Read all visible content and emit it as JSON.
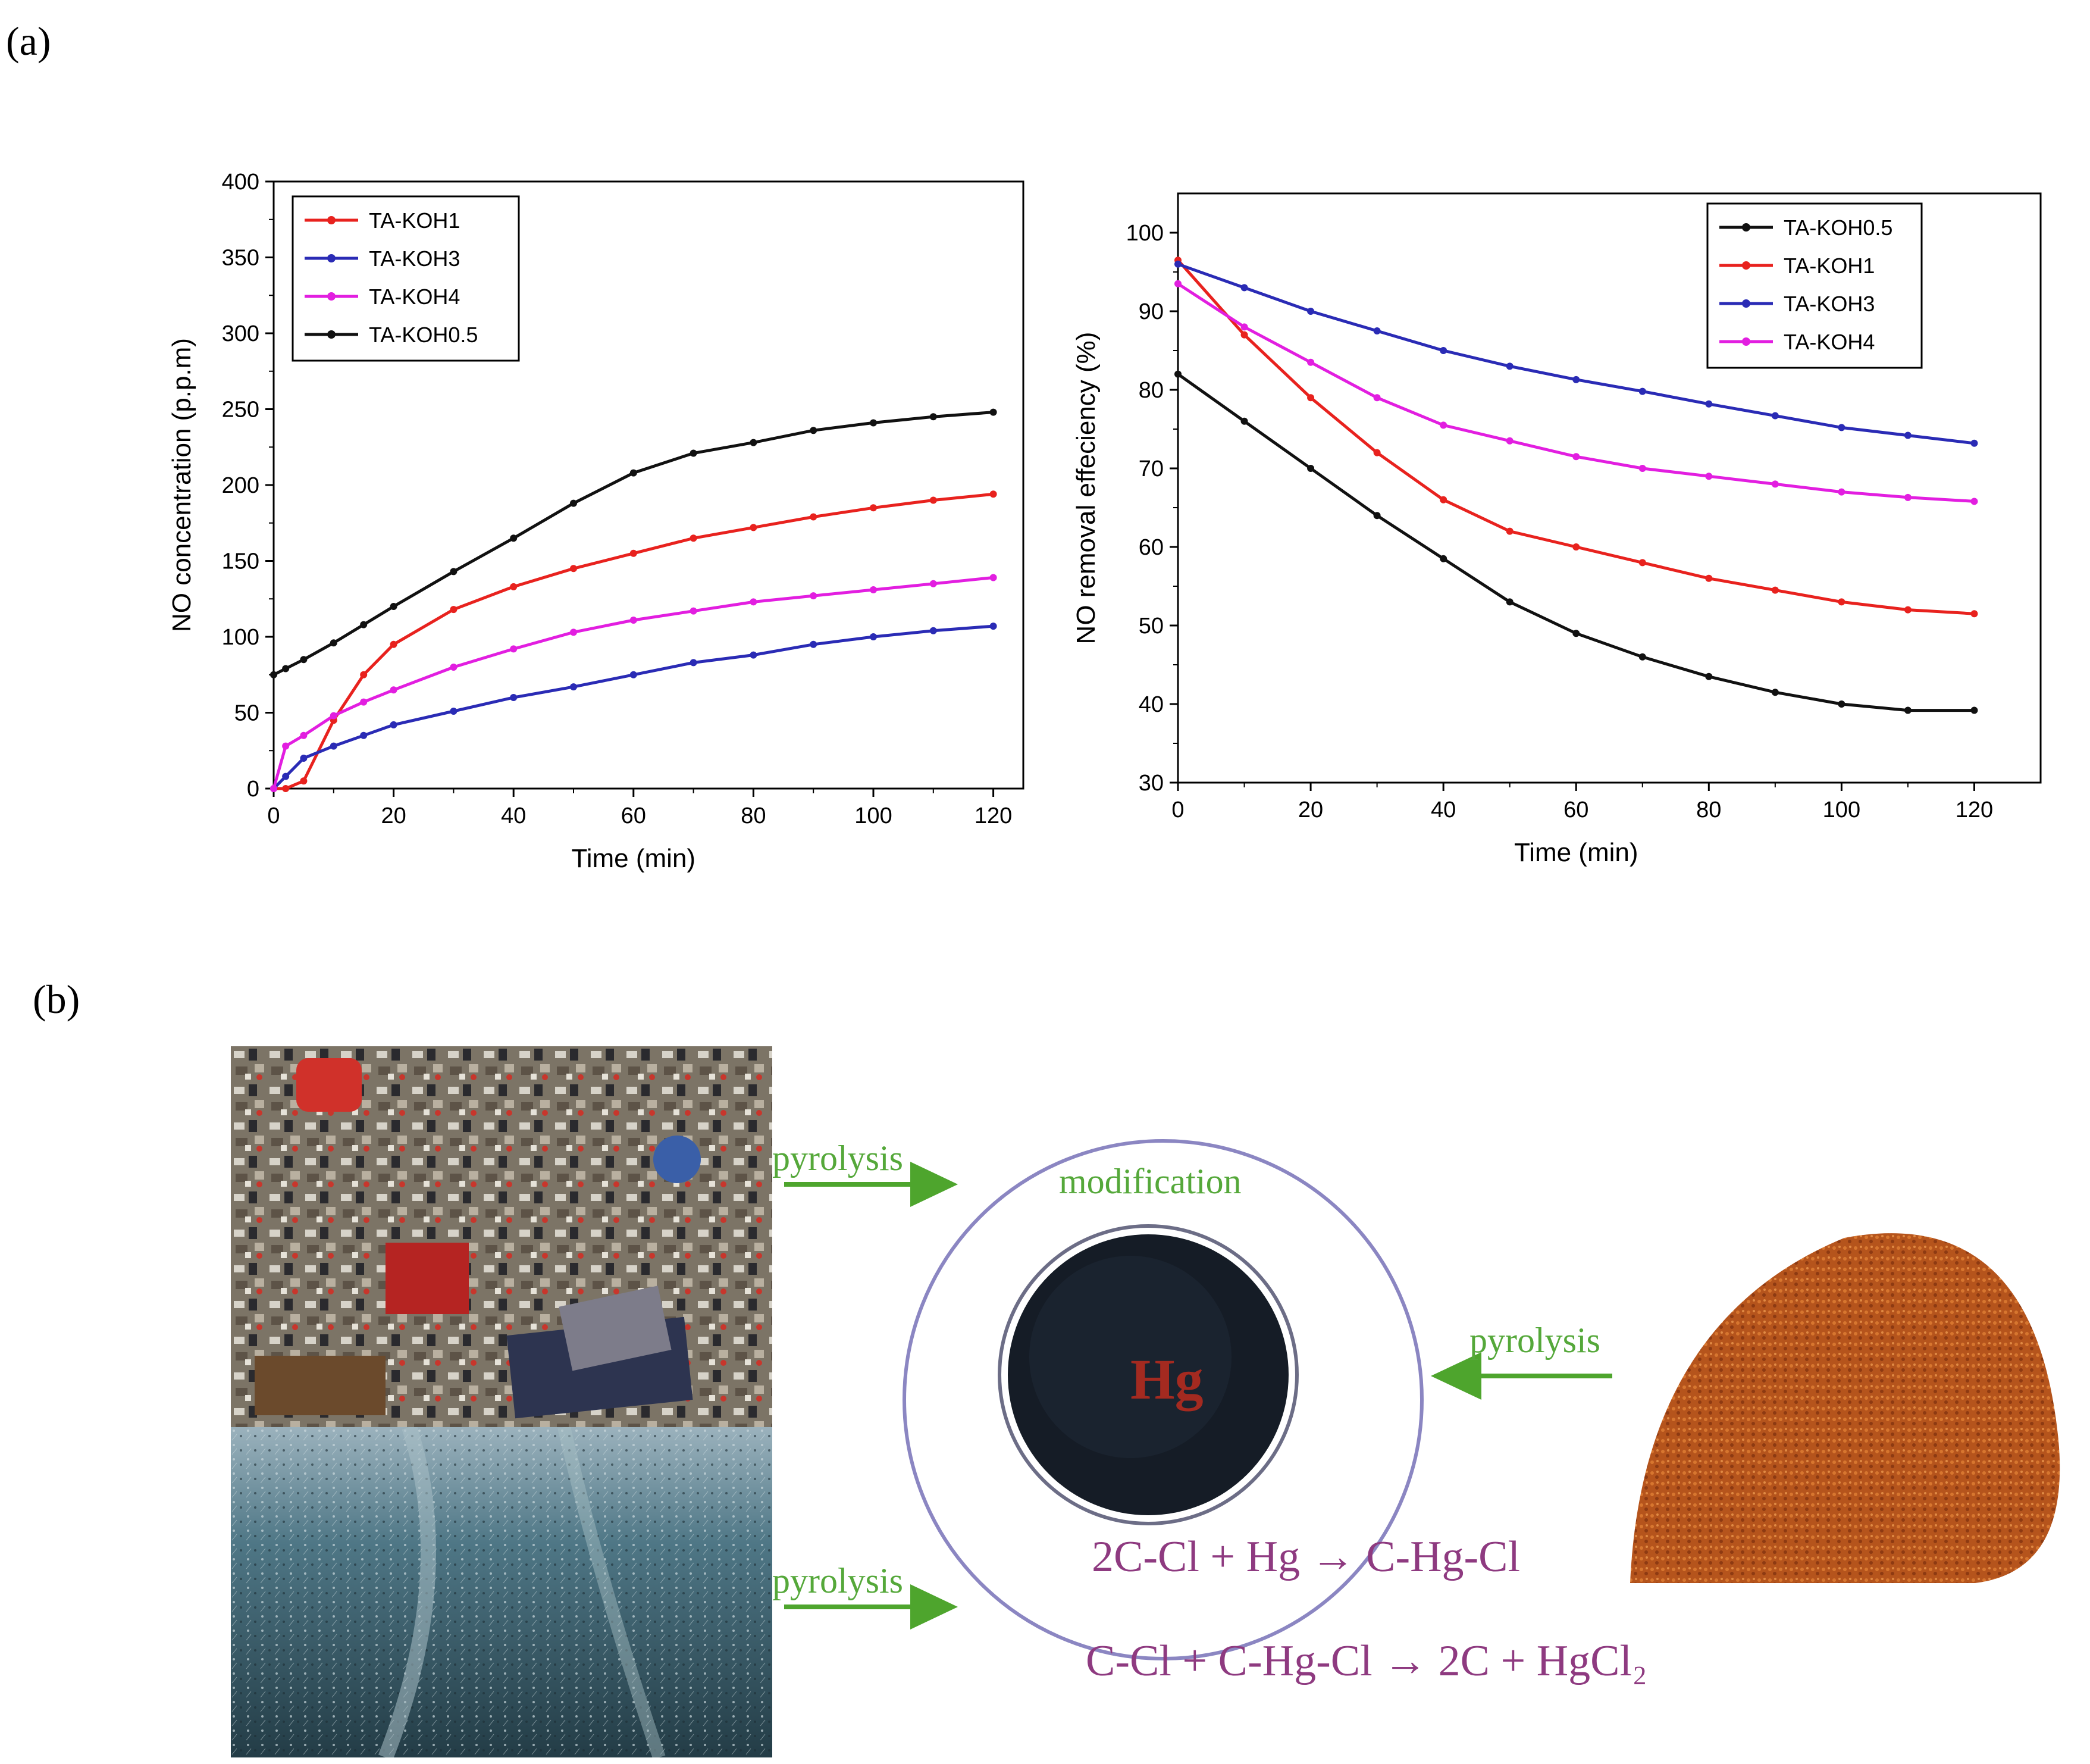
{
  "panel_a_label": "(a)",
  "panel_b_label": "(b)",
  "chart_data": [
    {
      "type": "line",
      "title": "",
      "xlabel": "Time (min)",
      "ylabel": "NO concentration (p.p.m)",
      "xlim": [
        0,
        125
      ],
      "ylim": [
        0,
        400
      ],
      "xticks": [
        0,
        20,
        40,
        60,
        80,
        100,
        120
      ],
      "yticks": [
        0,
        50,
        100,
        150,
        200,
        250,
        300,
        350,
        400
      ],
      "legend_position": "top-left",
      "x": [
        0,
        2,
        5,
        10,
        15,
        20,
        30,
        40,
        50,
        60,
        70,
        80,
        90,
        100,
        110,
        120
      ],
      "series": [
        {
          "name": "TA-KOH1",
          "color": "#e8221e",
          "values": [
            0,
            0,
            5,
            45,
            75,
            95,
            118,
            133,
            145,
            155,
            165,
            172,
            179,
            185,
            190,
            194
          ]
        },
        {
          "name": "TA-KOH3",
          "color": "#2a2bb5",
          "values": [
            0,
            8,
            20,
            28,
            35,
            42,
            51,
            60,
            67,
            75,
            83,
            88,
            95,
            100,
            104,
            107
          ]
        },
        {
          "name": "TA-KOH4",
          "color": "#e21ee0",
          "values": [
            0,
            28,
            35,
            48,
            57,
            65,
            80,
            92,
            103,
            111,
            117,
            123,
            127,
            131,
            135,
            139
          ]
        },
        {
          "name": "TA-KOH0.5",
          "color": "#111111",
          "values": [
            75,
            79,
            85,
            96,
            108,
            120,
            143,
            165,
            188,
            208,
            221,
            228,
            236,
            241,
            245,
            248
          ]
        }
      ]
    },
    {
      "type": "line",
      "title": "",
      "xlabel": "Time (min)",
      "ylabel": "NO removal effeciency (%)",
      "xlim": [
        0,
        130
      ],
      "ylim": [
        30,
        105
      ],
      "xticks": [
        0,
        20,
        40,
        60,
        80,
        100,
        120
      ],
      "yticks": [
        30,
        40,
        50,
        60,
        70,
        80,
        90,
        100
      ],
      "legend_position": "top-right",
      "x": [
        0,
        10,
        20,
        30,
        40,
        50,
        60,
        70,
        80,
        90,
        100,
        110,
        120
      ],
      "series": [
        {
          "name": "TA-KOH0.5",
          "color": "#111111",
          "values": [
            82,
            76,
            70,
            64,
            58.5,
            53,
            49,
            46,
            43.5,
            41.5,
            40,
            39.2,
            39.2
          ]
        },
        {
          "name": "TA-KOH1",
          "color": "#e8221e",
          "values": [
            96.5,
            87,
            79,
            72,
            66,
            62,
            60,
            58,
            56,
            54.5,
            53,
            52,
            51.5
          ]
        },
        {
          "name": "TA-KOH3",
          "color": "#2a2bb5",
          "values": [
            96,
            93,
            90,
            87.5,
            85,
            83,
            81.3,
            79.8,
            78.2,
            76.7,
            75.2,
            74.2,
            73.2
          ]
        },
        {
          "name": "TA-KOH4",
          "color": "#e21ee0",
          "values": [
            93.5,
            88,
            83.5,
            79,
            75.5,
            73.5,
            71.5,
            70,
            69,
            68,
            67,
            66.3,
            65.8
          ]
        }
      ]
    }
  ],
  "diagram": {
    "arrow_label_top": "pyrolysis",
    "arrow_label_bottom": "pyrolysis",
    "arrow_label_right": "pyrolysis",
    "circle_label": "modification",
    "center_label": "Hg",
    "equation_1": "2C-Cl + Hg → C-Hg-Cl",
    "equation_2": "C-Cl + C-Hg-Cl → 2C + HgCl₂",
    "arrow_color": "#4ea52d",
    "circle_color": "#8b86c2"
  }
}
